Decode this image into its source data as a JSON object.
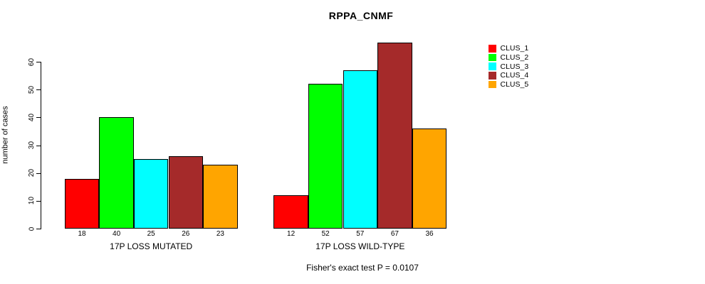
{
  "chart_data": {
    "type": "bar",
    "title": "RPPA_CNMF",
    "ylabel": "number of cases",
    "footer": "Fisher's exact test P = 0.0107",
    "categories": [
      "17P LOSS MUTATED",
      "17P LOSS WILD-TYPE"
    ],
    "groups": [
      {
        "label": "17P LOSS MUTATED",
        "values": [
          18,
          40,
          25,
          26,
          23
        ]
      },
      {
        "label": "17P LOSS WILD-TYPE",
        "values": [
          12,
          52,
          57,
          67,
          36
        ]
      }
    ],
    "series": [
      {
        "name": "CLUS_1",
        "color": "#FF0000"
      },
      {
        "name": "CLUS_2",
        "color": "#00FF00"
      },
      {
        "name": "CLUS_3",
        "color": "#00FFFF"
      },
      {
        "name": "CLUS_4",
        "color": "#A52A2A"
      },
      {
        "name": "CLUS_5",
        "color": "#FFA500"
      }
    ],
    "y_ticks": [
      0,
      10,
      20,
      30,
      40,
      50,
      60
    ],
    "ylim": [
      0,
      67
    ],
    "grid": false,
    "legend_position": "right",
    "bar_border_color": "#000000",
    "background_color": "#FFFFFF"
  }
}
